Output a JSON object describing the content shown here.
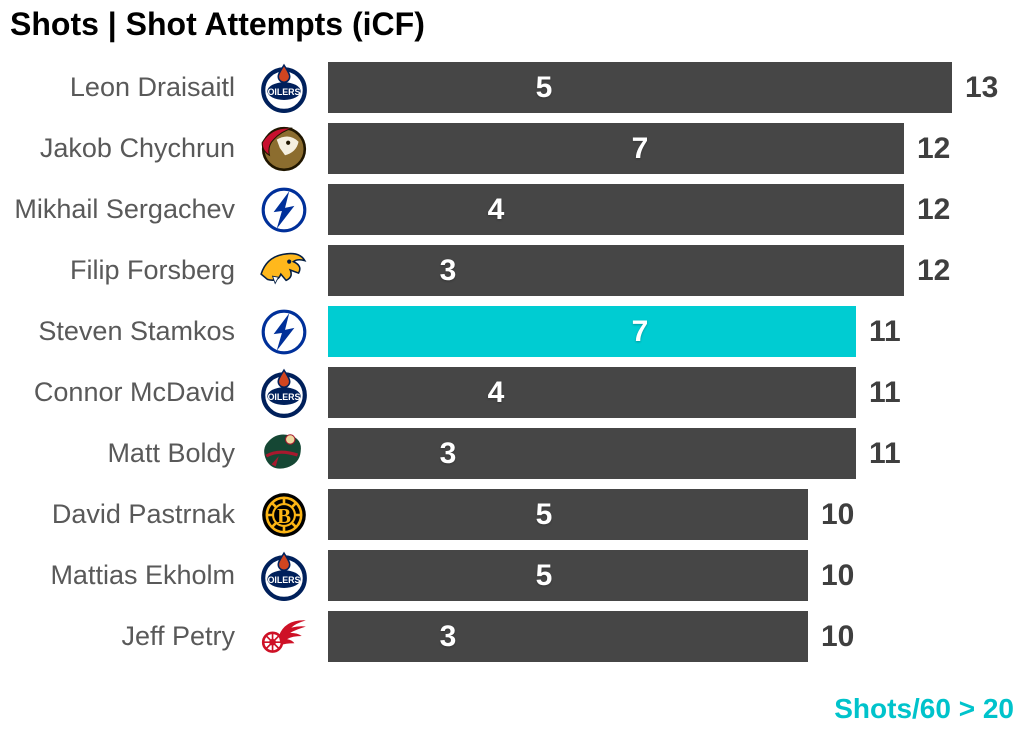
{
  "title": "Shots | Shot Attempts (iCF)",
  "footer": {
    "label": "Shots/60 > 20"
  },
  "colors": {
    "bar": "#464646",
    "highlight_bar": "#00ccd2",
    "inside_label": "#ffffff",
    "end_label": "#3f3f3f",
    "name_label": "#595959",
    "footer_text": "#00c3cb",
    "title_text": "#000000"
  },
  "chart_data": {
    "type": "bar",
    "orientation": "horizontal",
    "title": "Shots | Shot Attempts (iCF)",
    "categories": [
      "Leon Draisaitl",
      "Jakob Chychrun",
      "Mikhail Sergachev",
      "Filip Forsberg",
      "Steven Stamkos",
      "Connor McDavid",
      "Matt Boldy",
      "David Pastrnak",
      "Mattias Ekholm",
      "Jeff Petry"
    ],
    "teams": [
      "oilers",
      "senators",
      "lightning",
      "predators",
      "lightning",
      "oilers",
      "wild",
      "bruins",
      "oilers",
      "redwings"
    ],
    "series": [
      {
        "name": "Shots",
        "values": [
          5,
          7,
          4,
          3,
          7,
          4,
          3,
          5,
          5,
          3
        ],
        "label_position": "inside"
      },
      {
        "name": "Shot Attempts (iCF)",
        "values": [
          13,
          12,
          12,
          12,
          11,
          11,
          11,
          10,
          10,
          10
        ],
        "label_position": "end"
      }
    ],
    "highlight_index": 4,
    "highlight_note": "Shots/60 > 20",
    "xlim": [
      0,
      13
    ],
    "axis_ticks": "none",
    "grid": false,
    "legend": "none"
  }
}
